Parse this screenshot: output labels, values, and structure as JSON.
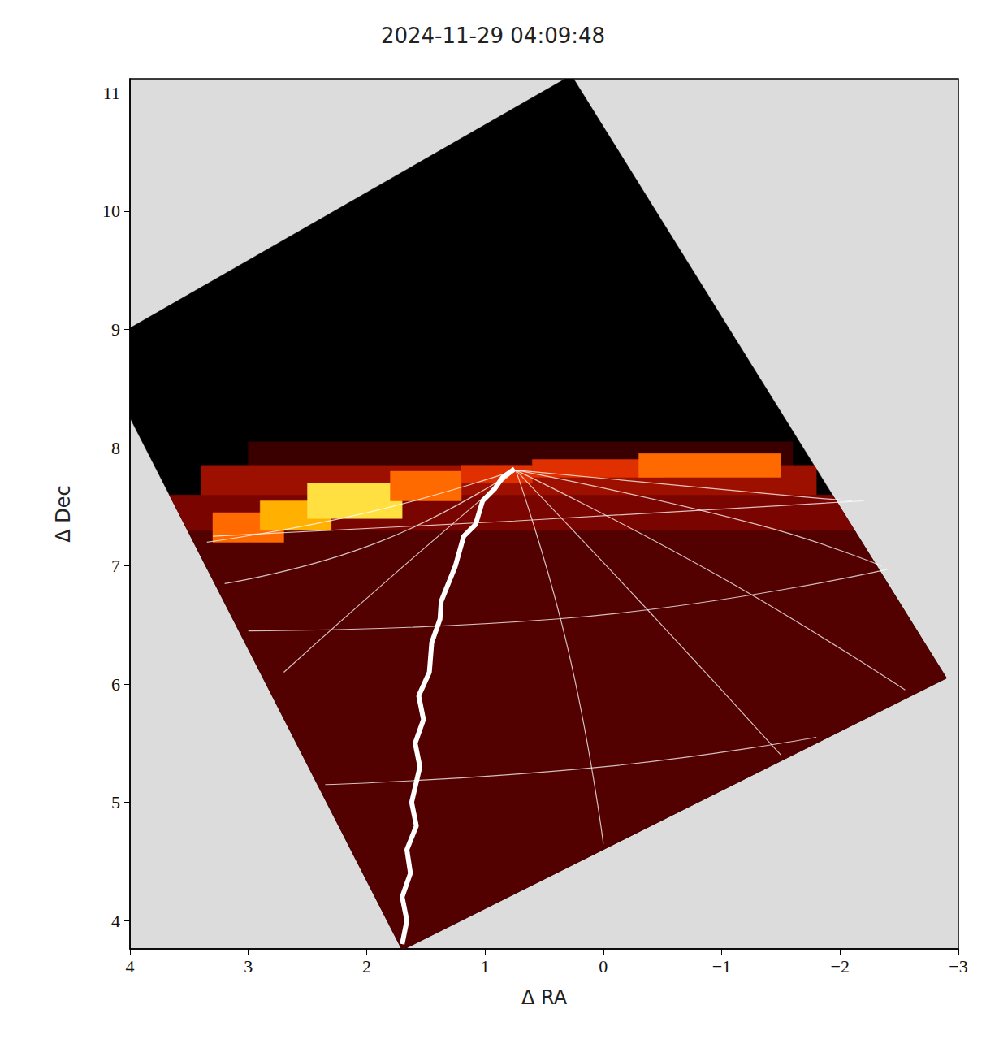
{
  "chart_data": {
    "type": "heatmap",
    "title": "2024-11-29 04:09:48",
    "xlabel": "Δ RA",
    "ylabel": "Δ Dec",
    "xlim": [
      4,
      -3
    ],
    "ylim": [
      3.76,
      11.12
    ],
    "xticks": [
      4,
      3,
      2,
      1,
      0,
      -1,
      -2,
      -3
    ],
    "yticks": [
      4,
      5,
      6,
      7,
      8,
      9,
      10,
      11
    ],
    "footprint": [
      [
        4.3,
        8.84
      ],
      [
        0.27,
        11.15
      ],
      [
        -2.9,
        6.05
      ],
      [
        1.7,
        3.75
      ]
    ],
    "color_range": [
      0,
      10
    ],
    "cells": [
      {
        "x": [
          4.5,
          -3.2
        ],
        "y": [
          3.7,
          11.2
        ],
        "value": 0
      },
      {
        "x": [
          4.5,
          -3.2
        ],
        "y": [
          3.7,
          7.3
        ],
        "value": 2.5
      },
      {
        "x": [
          4.5,
          -3.2
        ],
        "y": [
          7.3,
          7.6
        ],
        "value": 3.5
      },
      {
        "x": [
          3.0,
          -1.6
        ],
        "y": [
          7.85,
          8.05
        ],
        "value": 2
      },
      {
        "x": [
          3.4,
          -1.8
        ],
        "y": [
          7.6,
          7.85
        ],
        "value": 4.5
      },
      {
        "x": [
          3.3,
          2.7
        ],
        "y": [
          7.2,
          7.45
        ],
        "value": 7
      },
      {
        "x": [
          2.9,
          2.3
        ],
        "y": [
          7.3,
          7.55
        ],
        "value": 8
      },
      {
        "x": [
          2.5,
          1.7
        ],
        "y": [
          7.4,
          7.7
        ],
        "value": 9
      },
      {
        "x": [
          1.8,
          1.2
        ],
        "y": [
          7.55,
          7.8
        ],
        "value": 7
      },
      {
        "x": [
          1.2,
          0.6
        ],
        "y": [
          7.7,
          7.85
        ],
        "value": 6
      },
      {
        "x": [
          0.6,
          -0.5
        ],
        "y": [
          7.75,
          7.9
        ],
        "value": 6
      },
      {
        "x": [
          -0.3,
          -1.5
        ],
        "y": [
          7.75,
          7.95
        ],
        "value": 7
      }
    ],
    "grid_lines": {
      "color": "#ffffff",
      "lines": [
        [
          [
            0.74,
            7.81
          ],
          [
            2.0,
            7.45
          ],
          [
            3.35,
            7.2
          ]
        ],
        [
          [
            0.74,
            7.81
          ],
          [
            1.9,
            7.2
          ],
          [
            3.2,
            6.85
          ]
        ],
        [
          [
            0.74,
            7.81
          ],
          [
            1.8,
            6.9
          ],
          [
            2.7,
            6.1
          ]
        ],
        [
          [
            0.74,
            7.81
          ],
          [
            0.3,
            6.3
          ],
          [
            0.0,
            4.65
          ]
        ],
        [
          [
            0.74,
            7.81
          ],
          [
            -0.4,
            6.6
          ],
          [
            -1.5,
            5.4
          ]
        ],
        [
          [
            0.74,
            7.81
          ],
          [
            -1.0,
            6.9
          ],
          [
            -2.55,
            5.95
          ]
        ],
        [
          [
            0.74,
            7.81
          ],
          [
            -1.3,
            7.35
          ],
          [
            -2.35,
            7.0
          ]
        ],
        [
          [
            0.74,
            7.81
          ],
          [
            -1.5,
            7.6
          ],
          [
            -2.1,
            7.55
          ]
        ],
        [
          [
            3.3,
            7.25
          ],
          [
            0.75,
            7.38
          ],
          [
            -2.2,
            7.55
          ]
        ],
        [
          [
            3.0,
            6.45
          ],
          [
            0.4,
            6.55
          ],
          [
            -2.4,
            6.97
          ]
        ],
        [
          [
            2.35,
            5.15
          ],
          [
            0.0,
            5.3
          ],
          [
            -1.8,
            5.55
          ]
        ]
      ]
    },
    "track": {
      "color": "#ffffff",
      "x": [
        1.7,
        1.66,
        1.7,
        1.63,
        1.66,
        1.58,
        1.62,
        1.55,
        1.59,
        1.52,
        1.56,
        1.47,
        1.45,
        1.38,
        1.37,
        1.25,
        1.18,
        1.08,
        1.02,
        0.92,
        0.85,
        0.75
      ],
      "y": [
        3.8,
        4.0,
        4.2,
        4.4,
        4.6,
        4.8,
        5.0,
        5.3,
        5.5,
        5.7,
        5.9,
        6.1,
        6.35,
        6.55,
        6.7,
        7.0,
        7.25,
        7.35,
        7.55,
        7.65,
        7.75,
        7.82
      ]
    }
  }
}
